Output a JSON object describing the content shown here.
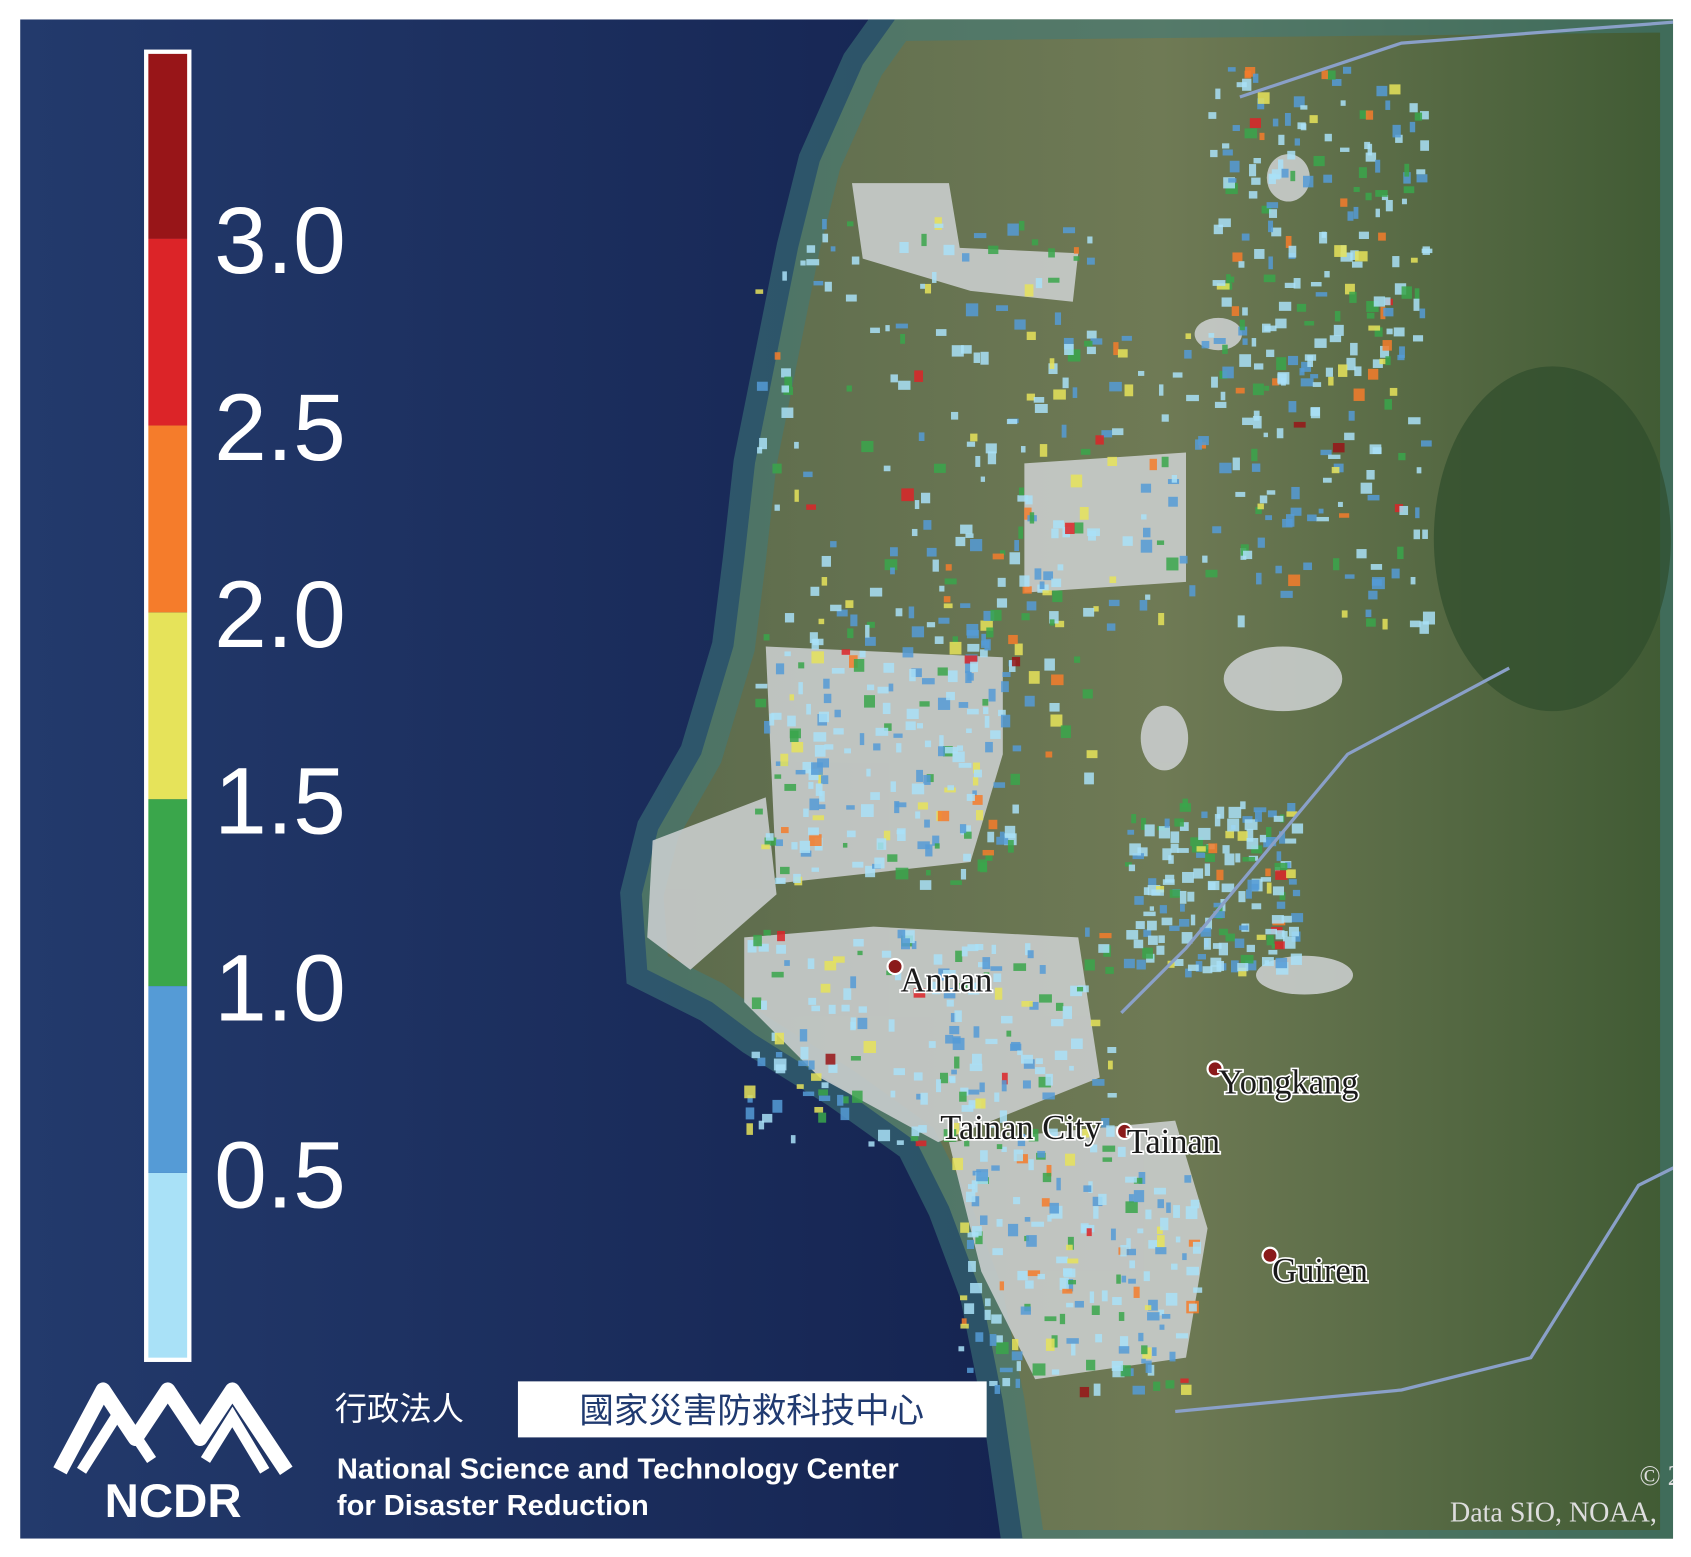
{
  "legend": {
    "range": [
      0,
      3.5
    ],
    "ticks": [
      0.5,
      1.0,
      1.5,
      2.0,
      2.5,
      3.0
    ],
    "colors": [
      "#a9e1f7",
      "#559bd6",
      "#3aa64b",
      "#e6e35a",
      "#f57c2b",
      "#dc2428",
      "#981518"
    ]
  },
  "places": [
    {
      "label": "Annan"
    },
    {
      "label": "Yongkang"
    },
    {
      "label": "Tainan City"
    },
    {
      "label": "Tainan"
    },
    {
      "label": "Guiren"
    }
  ],
  "logo": {
    "acronym": "NCDR",
    "prefix": "行政法人",
    "name_zh": "國家災害防救科技中心",
    "name_en_1": "National Science and Technology Center",
    "name_en_2": "for Disaster Reduction"
  },
  "attribution": {
    "copyright": "© 2",
    "data": "Data SIO, NOAA,"
  }
}
